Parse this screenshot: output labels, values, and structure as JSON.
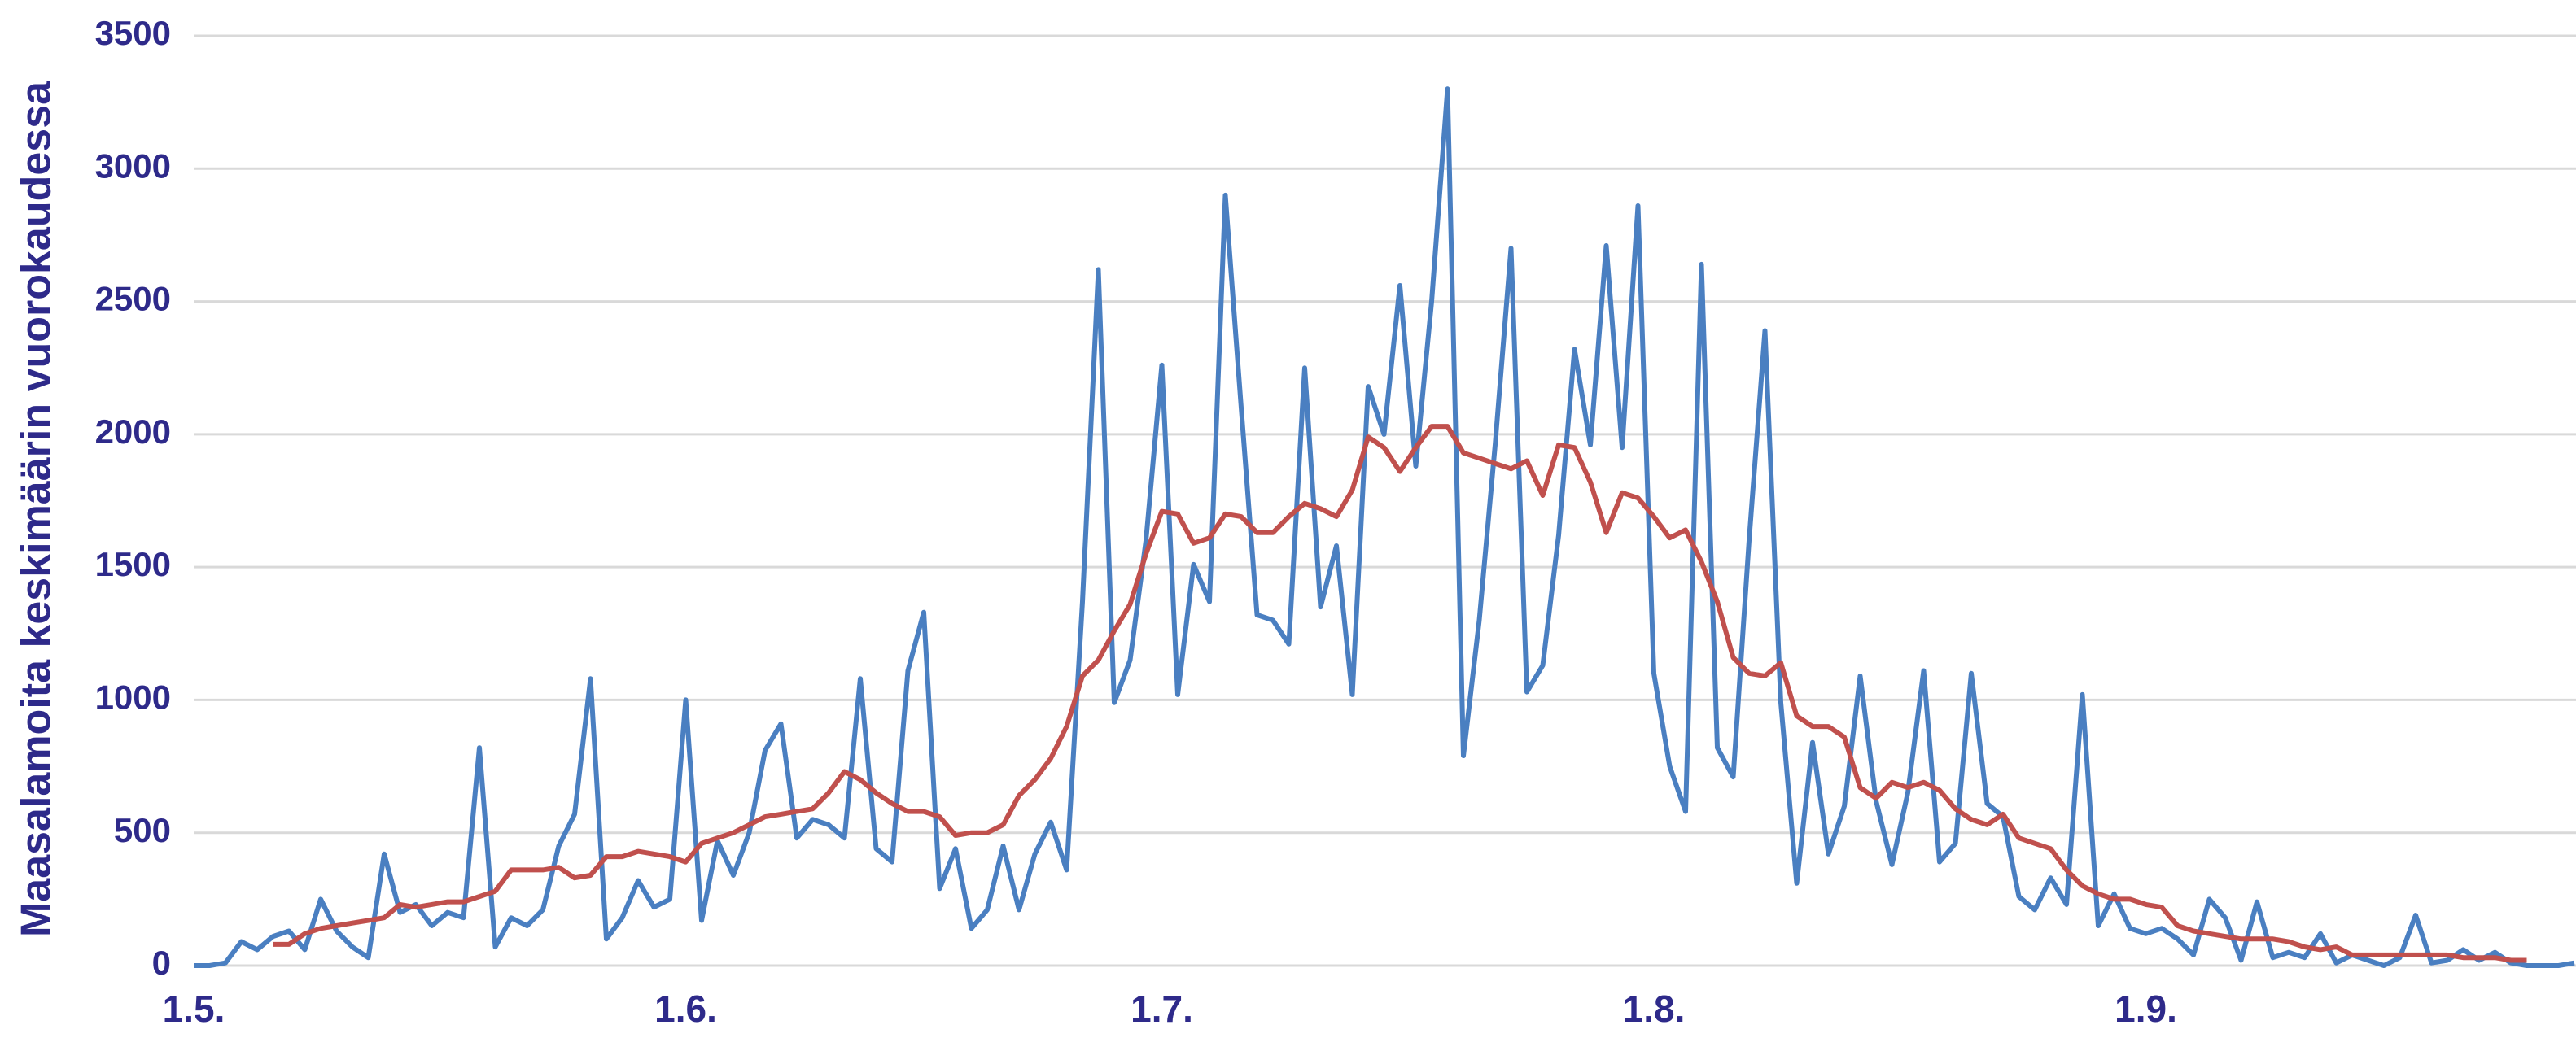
{
  "chart_data": {
    "type": "line",
    "ylabel": "Maasalamoita keskimäärin vuorokaudessa",
    "categories": [
      "1.5.",
      null,
      null,
      null,
      null,
      null,
      null,
      null,
      null,
      null,
      null,
      null,
      null,
      null,
      null,
      null,
      null,
      null,
      null,
      null,
      null,
      null,
      null,
      null,
      null,
      null,
      null,
      null,
      null,
      null,
      null,
      "1.6.",
      null,
      null,
      null,
      null,
      null,
      null,
      null,
      null,
      null,
      null,
      null,
      null,
      null,
      null,
      null,
      null,
      null,
      null,
      null,
      null,
      null,
      null,
      null,
      null,
      null,
      null,
      null,
      null,
      null,
      "1.7.",
      null,
      null,
      null,
      null,
      null,
      null,
      null,
      null,
      null,
      null,
      null,
      null,
      null,
      null,
      null,
      null,
      null,
      null,
      null,
      null,
      null,
      null,
      null,
      null,
      null,
      null,
      null,
      null,
      null,
      null,
      "1.8.",
      null,
      null,
      null,
      null,
      null,
      null,
      null,
      null,
      null,
      null,
      null,
      null,
      null,
      null,
      null,
      null,
      null,
      null,
      null,
      null,
      null,
      null,
      null,
      null,
      null,
      null,
      null,
      null,
      null,
      null,
      "1.9.",
      null,
      null,
      null,
      null,
      null,
      null,
      null,
      null,
      null,
      null,
      null,
      null,
      null,
      null,
      null,
      null,
      null,
      null,
      null,
      null,
      null,
      null,
      null,
      null,
      null,
      null,
      null
    ],
    "series": [
      {
        "color": "#4a7fc1",
        "values": [
          0,
          0,
          10,
          90,
          60,
          110,
          130,
          60,
          250,
          130,
          70,
          30,
          420,
          200,
          230,
          150,
          200,
          180,
          820,
          70,
          180,
          150,
          210,
          450,
          570,
          1080,
          100,
          180,
          320,
          220,
          250,
          1000,
          170,
          470,
          340,
          500,
          810,
          910,
          480,
          550,
          530,
          480,
          1080,
          440,
          390,
          1110,
          1330,
          290,
          440,
          140,
          210,
          450,
          210,
          420,
          540,
          360,
          1370,
          2620,
          990,
          1150,
          1600,
          2260,
          1020,
          1510,
          1370,
          2900,
          2100,
          1320,
          1300,
          1210,
          2250,
          1350,
          1580,
          1020,
          2180,
          2000,
          2560,
          1880,
          2500,
          3300,
          790,
          1300,
          1960,
          2700,
          1030,
          1130,
          1620,
          2320,
          1960,
          2710,
          1950,
          2860,
          1100,
          750,
          580,
          2640,
          820,
          710,
          1600,
          2390,
          990,
          310,
          840,
          420,
          600,
          1090,
          620,
          380,
          650,
          1110,
          390,
          460,
          1100,
          610,
          560,
          260,
          210,
          330,
          230,
          1020,
          150,
          270,
          140,
          120,
          140,
          100,
          40,
          250,
          180,
          20,
          240,
          30,
          50,
          30,
          120,
          10,
          40,
          20,
          0,
          30,
          190,
          10,
          20,
          60,
          20,
          50,
          10,
          0,
          0,
          0,
          10
        ]
      },
      {
        "color": "#c0504d",
        "values": [
          null,
          null,
          null,
          null,
          null,
          80,
          80,
          120,
          140,
          150,
          160,
          170,
          180,
          230,
          220,
          230,
          240,
          240,
          260,
          280,
          360,
          360,
          360,
          370,
          330,
          340,
          410,
          410,
          430,
          420,
          410,
          390,
          460,
          480,
          500,
          530,
          560,
          570,
          580,
          590,
          650,
          730,
          700,
          650,
          610,
          580,
          580,
          560,
          490,
          500,
          500,
          530,
          640,
          700,
          780,
          900,
          1090,
          1150,
          1260,
          1360,
          1550,
          1710,
          1700,
          1590,
          1610,
          1700,
          1690,
          1630,
          1630,
          1690,
          1740,
          1720,
          1690,
          1790,
          1990,
          1950,
          1860,
          1950,
          2030,
          2030,
          1930,
          1910,
          1890,
          1870,
          1900,
          1770,
          1960,
          1950,
          1820,
          1630,
          1780,
          1760,
          1690,
          1610,
          1640,
          1520,
          1370,
          1160,
          1100,
          1090,
          1140,
          940,
          900,
          900,
          860,
          670,
          630,
          690,
          670,
          690,
          660,
          590,
          550,
          530,
          570,
          480,
          460,
          440,
          360,
          300,
          270,
          250,
          250,
          230,
          220,
          150,
          130,
          120,
          110,
          100,
          100,
          100,
          90,
          70,
          60,
          70,
          40,
          40,
          40,
          40,
          40,
          40,
          40,
          30,
          30,
          30,
          20,
          20,
          null,
          null,
          null
        ]
      }
    ],
    "ylim": [
      0,
      3500
    ],
    "yticks": [
      0,
      500,
      1000,
      1500,
      2000,
      2500,
      3000,
      3500
    ],
    "grid": true
  }
}
